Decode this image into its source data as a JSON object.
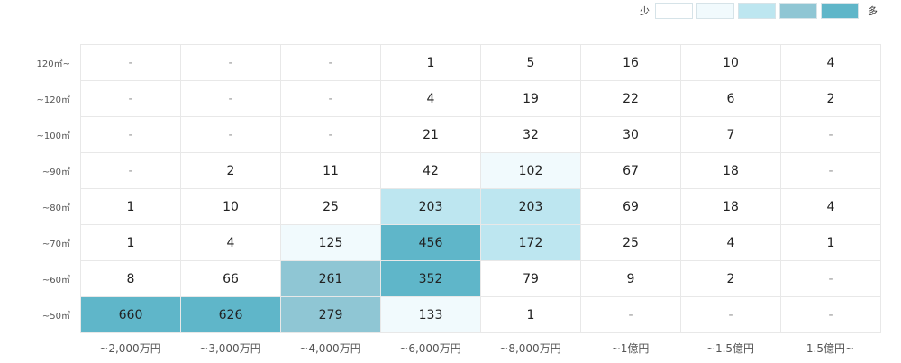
{
  "legend": {
    "low_label": "少",
    "high_label": "多",
    "swatch_colors": [
      "#ffffff",
      "#f1fafd",
      "#bde6f0",
      "#8fc6d4",
      "#5fb6c9"
    ]
  },
  "chart_data": {
    "type": "heatmap",
    "title": "",
    "x_categories": [
      "~2,000万円",
      "~3,000万円",
      "~4,000万円",
      "~6,000万円",
      "~8,000万円",
      "~1億円",
      "~1.5億円",
      "1.5億円~"
    ],
    "y_categories": [
      "120㎡~",
      "~120㎡",
      "~100㎡",
      "~90㎡",
      "~80㎡",
      "~70㎡",
      "~60㎡",
      "~50㎡"
    ],
    "values": [
      [
        "-",
        "-",
        "-",
        "1",
        "5",
        "16",
        "10",
        "4"
      ],
      [
        "-",
        "-",
        "-",
        "4",
        "19",
        "22",
        "6",
        "2"
      ],
      [
        "-",
        "-",
        "-",
        "21",
        "32",
        "30",
        "7",
        "-"
      ],
      [
        "-",
        "2",
        "11",
        "42",
        "102",
        "67",
        "18",
        "-"
      ],
      [
        "1",
        "10",
        "25",
        "203",
        "203",
        "69",
        "18",
        "4"
      ],
      [
        "1",
        "4",
        "125",
        "456",
        "172",
        "25",
        "4",
        "1"
      ],
      [
        "8",
        "66",
        "261",
        "352",
        "79",
        "9",
        "2",
        "-"
      ],
      [
        "660",
        "626",
        "279",
        "133",
        "1",
        "-",
        "-",
        "-"
      ]
    ],
    "color_levels": [
      [
        0,
        0,
        0,
        0,
        0,
        0,
        0,
        0
      ],
      [
        0,
        0,
        0,
        0,
        0,
        0,
        0,
        0
      ],
      [
        0,
        0,
        0,
        0,
        0,
        0,
        0,
        0
      ],
      [
        0,
        0,
        0,
        0,
        1,
        0,
        0,
        0
      ],
      [
        0,
        0,
        0,
        2,
        2,
        0,
        0,
        0
      ],
      [
        0,
        0,
        1,
        4,
        2,
        0,
        0,
        0
      ],
      [
        0,
        0,
        3,
        4,
        0,
        0,
        0,
        0
      ],
      [
        4,
        4,
        3,
        1,
        0,
        0,
        0,
        0
      ]
    ]
  }
}
